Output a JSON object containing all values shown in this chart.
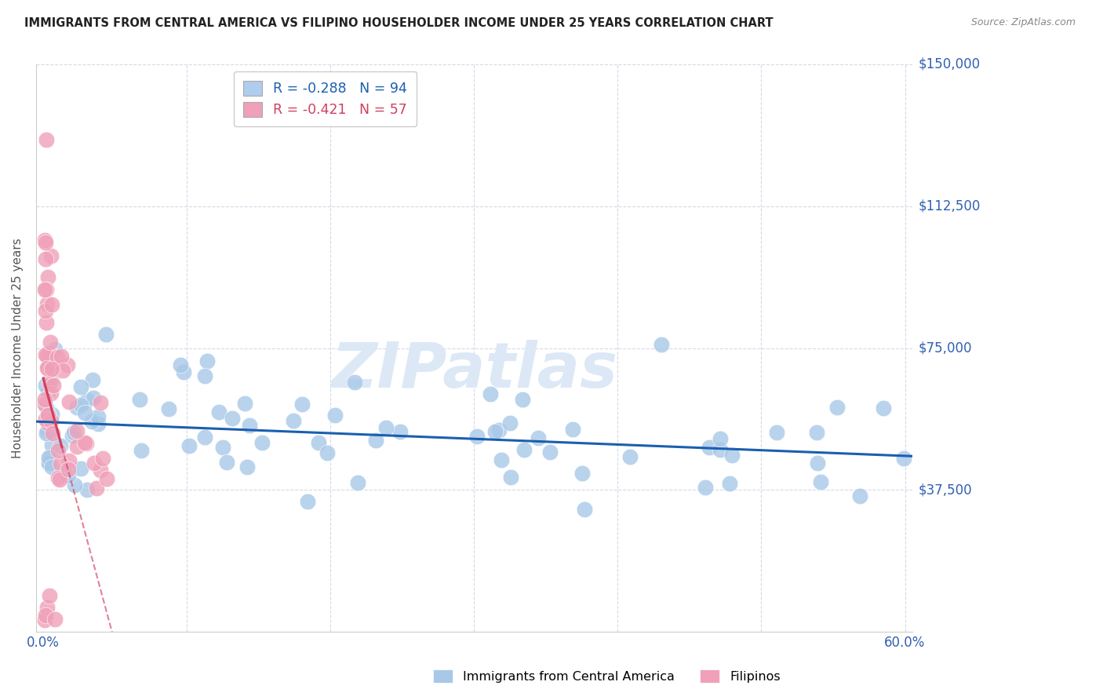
{
  "title": "IMMIGRANTS FROM CENTRAL AMERICA VS FILIPINO HOUSEHOLDER INCOME UNDER 25 YEARS CORRELATION CHART",
  "source": "Source: ZipAtlas.com",
  "ylabel": "Householder Income Under 25 years",
  "xlim": [
    -0.005,
    0.605
  ],
  "ylim": [
    0,
    150000
  ],
  "blue_R": -0.288,
  "blue_N": 94,
  "pink_R": -0.421,
  "pink_N": 57,
  "blue_color": "#a8c8e8",
  "pink_color": "#f0a0b8",
  "blue_line_color": "#1a5fb0",
  "pink_line_color": "#d04060",
  "watermark": "ZIPatlas",
  "watermark_color": "#dce8f5",
  "background_color": "#ffffff",
  "grid_color": "#d8d8e8",
  "title_color": "#222222",
  "axis_label_color": "#555555",
  "right_label_color": "#3060b0",
  "bottom_label_color": "#3060b0",
  "legend_box_color_blue": "#b0ccee",
  "legend_box_color_pink": "#f0a0b8"
}
